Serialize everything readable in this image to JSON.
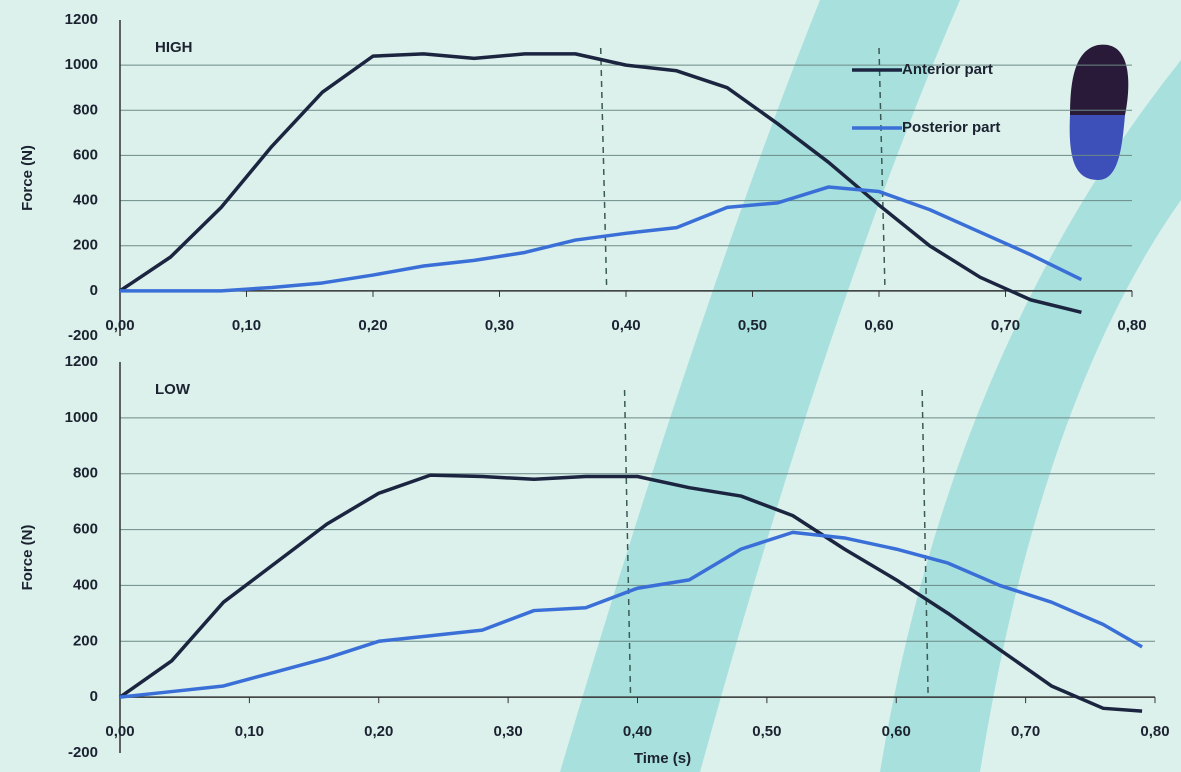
{
  "chart_data": [
    {
      "type": "line",
      "title": "HIGH",
      "y_label": "Force (N)",
      "x": [
        0,
        0.04,
        0.08,
        0.12,
        0.16,
        0.2,
        0.24,
        0.28,
        0.32,
        0.36,
        0.4,
        0.44,
        0.48,
        0.52,
        0.56,
        0.6,
        0.64,
        0.68,
        0.72,
        0.76
      ],
      "series": [
        {
          "name": "Anterior part",
          "color": "#1b2540",
          "values": [
            0,
            150,
            370,
            640,
            880,
            1040,
            1050,
            1030,
            1050,
            1050,
            1000,
            975,
            900,
            740,
            570,
            380,
            200,
            60,
            -40,
            -95
          ]
        },
        {
          "name": "Posterior part",
          "color": "#3a6fd8",
          "values": [
            0,
            0,
            0,
            15,
            35,
            70,
            110,
            135,
            170,
            225,
            255,
            280,
            370,
            390,
            460,
            440,
            360,
            260,
            160,
            50
          ]
        }
      ],
      "xlim": [
        0,
        0.8
      ],
      "xticks": [
        {
          "value": 0,
          "label": "0,00"
        },
        {
          "value": 0.1,
          "label": "0,10"
        },
        {
          "value": 0.2,
          "label": "0,20"
        },
        {
          "value": 0.3,
          "label": "0,30"
        },
        {
          "value": 0.4,
          "label": "0,40"
        },
        {
          "value": 0.5,
          "label": "0,50"
        },
        {
          "value": 0.6,
          "label": "0,60"
        },
        {
          "value": 0.7,
          "label": "0,70"
        },
        {
          "value": 0.8,
          "label": "0,80"
        }
      ],
      "ylim": [
        -200,
        1200
      ],
      "yticks": [
        -200,
        0,
        200,
        400,
        600,
        800,
        1000,
        1200
      ],
      "vlines": [
        0.38,
        0.6
      ],
      "grid": true,
      "legend": "upper right"
    },
    {
      "type": "line",
      "title": "LOW",
      "y_label": "Force (N)",
      "x_label": "Time (s)",
      "x": [
        0,
        0.04,
        0.08,
        0.12,
        0.16,
        0.2,
        0.24,
        0.28,
        0.32,
        0.36,
        0.4,
        0.44,
        0.48,
        0.52,
        0.56,
        0.6,
        0.64,
        0.68,
        0.72,
        0.76,
        0.79
      ],
      "series": [
        {
          "name": "Anterior part",
          "color": "#1b2540",
          "values": [
            0,
            130,
            340,
            480,
            620,
            730,
            795,
            790,
            780,
            790,
            790,
            750,
            720,
            650,
            530,
            420,
            300,
            170,
            40,
            -40,
            -50
          ]
        },
        {
          "name": "Posterior part",
          "color": "#3a6fd8",
          "values": [
            0,
            20,
            40,
            90,
            140,
            200,
            220,
            240,
            310,
            320,
            390,
            420,
            530,
            590,
            570,
            530,
            480,
            400,
            340,
            260,
            180
          ]
        }
      ],
      "xlim": [
        0,
        0.8
      ],
      "xticks": [
        {
          "value": 0,
          "label": "0,00"
        },
        {
          "value": 0.1,
          "label": "0,10"
        },
        {
          "value": 0.2,
          "label": "0,20"
        },
        {
          "value": 0.3,
          "label": "0,30"
        },
        {
          "value": 0.4,
          "label": "0,40"
        },
        {
          "value": 0.5,
          "label": "0,50"
        },
        {
          "value": 0.6,
          "label": "0,60"
        },
        {
          "value": 0.7,
          "label": "0,70"
        },
        {
          "value": 0.8,
          "label": "0,80"
        }
      ],
      "ylim": [
        -200,
        1200
      ],
      "yticks": [
        -200,
        0,
        200,
        400,
        600,
        800,
        1000,
        1200
      ],
      "vlines": [
        0.39,
        0.62
      ],
      "grid": true
    }
  ]
}
